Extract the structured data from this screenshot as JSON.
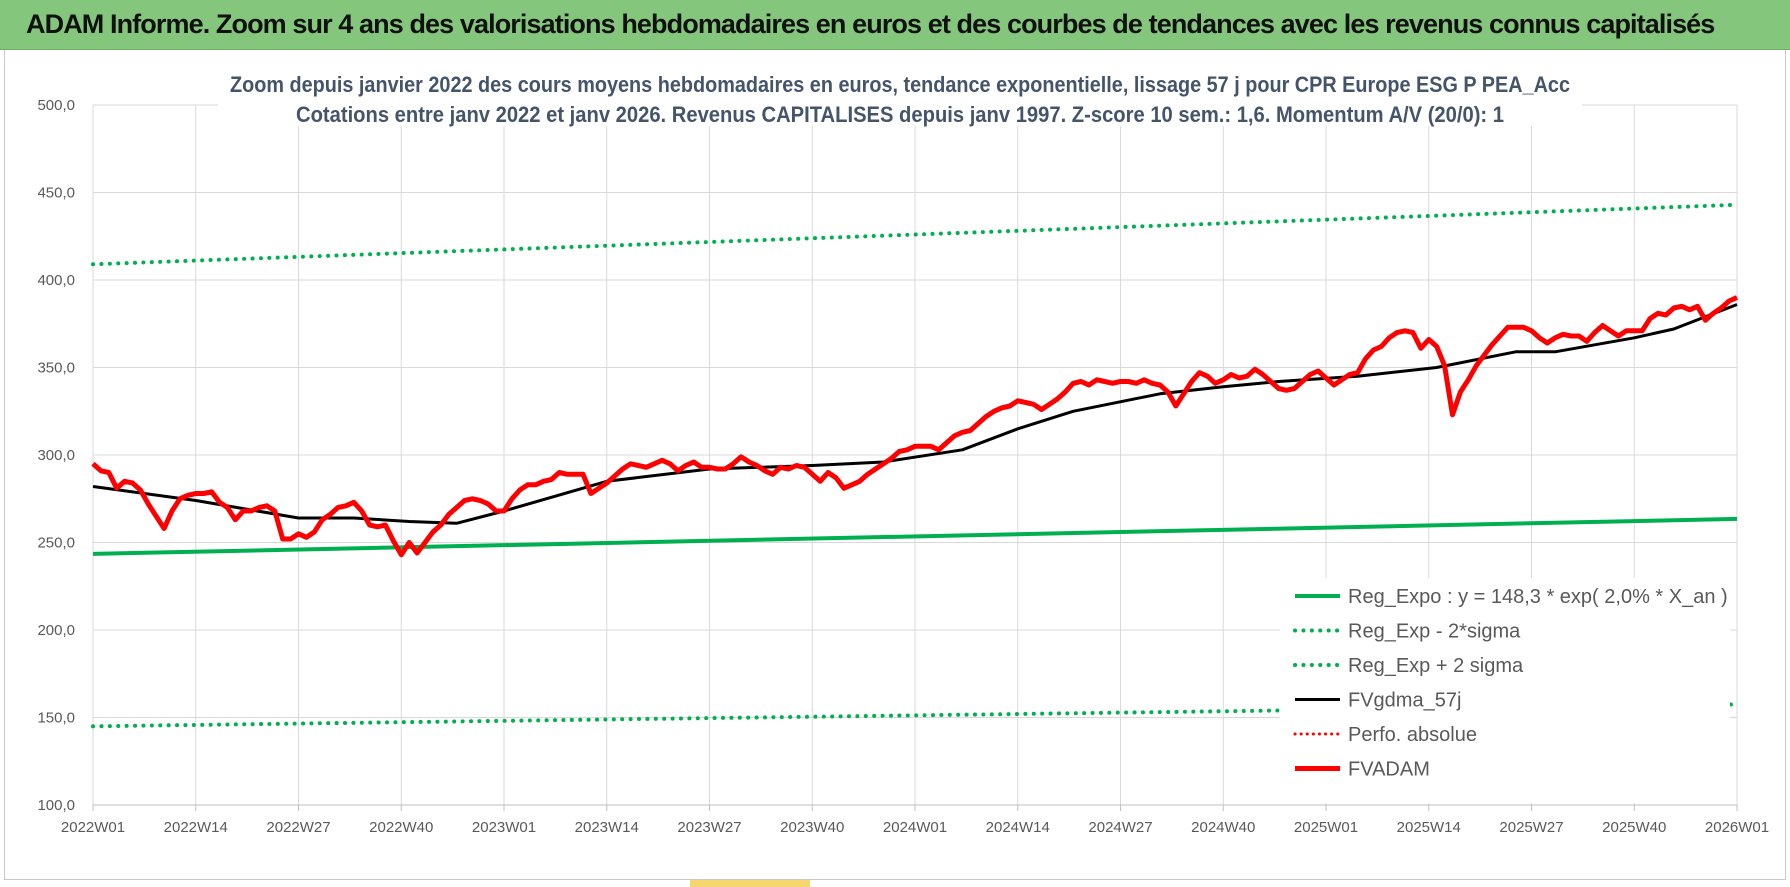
{
  "banner": {
    "title": "ADAM Informe. Zoom sur 4 ans des valorisations hebdomadaires en euros et des courbes de tendances avec les revenus connus capitalisés",
    "color": "#84c67b"
  },
  "chart_data": {
    "type": "line",
    "title_line1": "Zoom depuis janvier 2022 des cours moyens hebdomadaires en euros, tendance exponentielle, lissage 57 j pour CPR Europe ESG P PEA_Acc",
    "title_line2": "Cotations entre janv 2022 et janv 2026. Revenus CAPITALISES depuis janv 1997. Z-score 10 sem.: 1,6. Momentum A/V (20/0): 1",
    "ylim": [
      100,
      500
    ],
    "yticks": [
      "100,0",
      "150,0",
      "200,0",
      "250,0",
      "300,0",
      "350,0",
      "400,0",
      "450,0",
      "500,0"
    ],
    "xticks": [
      "2022W01",
      "2022W14",
      "2022W27",
      "2022W40",
      "2023W01",
      "2023W14",
      "2023W27",
      "2023W40",
      "2024W01",
      "2024W14",
      "2024W27",
      "2024W40",
      "2025W01",
      "2025W14",
      "2025W27",
      "2025W40",
      "2026W01"
    ],
    "xlim": [
      0,
      208
    ],
    "legend_position": "right",
    "series": [
      {
        "name": "Reg_Expo : y = 148,3 * exp( 2,0% *  X_an )",
        "color": "#00b050",
        "style": "solid",
        "points": [
          [
            0,
            243.5
          ],
          [
            208,
            263.5
          ]
        ]
      },
      {
        "name": "Reg_Exp - 2*sigma",
        "color": "#00b050",
        "style": "dotted",
        "points": [
          [
            0,
            145
          ],
          [
            208,
            157.5
          ]
        ]
      },
      {
        "name": "Reg_Exp + 2 sigma",
        "color": "#00b050",
        "style": "dotted",
        "points": [
          [
            0,
            409
          ],
          [
            208,
            443
          ]
        ]
      },
      {
        "name": "FVgdma_57j",
        "color": "#000000",
        "style": "solid",
        "points": [
          [
            0,
            282
          ],
          [
            13,
            274
          ],
          [
            26,
            264
          ],
          [
            33,
            264
          ],
          [
            40,
            262
          ],
          [
            46,
            261
          ],
          [
            52,
            268
          ],
          [
            65,
            285
          ],
          [
            78,
            292
          ],
          [
            91,
            294
          ],
          [
            100,
            296
          ],
          [
            110,
            303
          ],
          [
            117,
            315
          ],
          [
            124,
            325
          ],
          [
            135,
            335
          ],
          [
            143,
            339
          ],
          [
            150,
            342
          ],
          [
            160,
            345
          ],
          [
            170,
            350
          ],
          [
            180,
            359
          ],
          [
            185,
            359
          ],
          [
            195,
            367
          ],
          [
            200,
            372
          ],
          [
            208,
            386
          ]
        ]
      },
      {
        "name": "Perfo. absolue",
        "color": "#ff0000",
        "style": "dotted",
        "points": []
      },
      {
        "name": "FVADAM",
        "color": "#ff0000",
        "style": "solid",
        "points": [
          [
            0,
            295
          ],
          [
            1,
            291
          ],
          [
            2,
            290
          ],
          [
            3,
            281
          ],
          [
            4,
            285
          ],
          [
            5,
            284
          ],
          [
            6,
            280
          ],
          [
            7,
            272
          ],
          [
            8,
            265
          ],
          [
            9,
            258
          ],
          [
            10,
            268
          ],
          [
            11,
            275
          ],
          [
            12,
            277
          ],
          [
            13,
            278
          ],
          [
            14,
            278
          ],
          [
            15,
            279
          ],
          [
            16,
            273
          ],
          [
            17,
            270
          ],
          [
            18,
            263
          ],
          [
            19,
            268
          ],
          [
            20,
            268
          ],
          [
            21,
            270
          ],
          [
            22,
            271
          ],
          [
            23,
            268
          ],
          [
            24,
            252
          ],
          [
            25,
            252
          ],
          [
            26,
            255
          ],
          [
            27,
            253
          ],
          [
            28,
            256
          ],
          [
            29,
            263
          ],
          [
            30,
            266
          ],
          [
            31,
            270
          ],
          [
            32,
            271
          ],
          [
            33,
            273
          ],
          [
            34,
            268
          ],
          [
            35,
            260
          ],
          [
            36,
            259
          ],
          [
            37,
            260
          ],
          [
            38,
            251
          ],
          [
            39,
            243
          ],
          [
            40,
            250
          ],
          [
            41,
            244
          ],
          [
            42,
            250
          ],
          [
            43,
            256
          ],
          [
            44,
            260
          ],
          [
            45,
            266
          ],
          [
            46,
            270
          ],
          [
            47,
            274
          ],
          [
            48,
            275
          ],
          [
            49,
            274
          ],
          [
            50,
            272
          ],
          [
            51,
            268
          ],
          [
            52,
            268
          ],
          [
            53,
            275
          ],
          [
            54,
            280
          ],
          [
            55,
            283
          ],
          [
            56,
            283
          ],
          [
            57,
            285
          ],
          [
            58,
            286
          ],
          [
            59,
            290
          ],
          [
            60,
            289
          ],
          [
            61,
            289
          ],
          [
            62,
            289
          ],
          [
            63,
            278
          ],
          [
            64,
            281
          ],
          [
            65,
            284
          ],
          [
            66,
            288
          ],
          [
            67,
            292
          ],
          [
            68,
            295
          ],
          [
            69,
            294
          ],
          [
            70,
            293
          ],
          [
            71,
            295
          ],
          [
            72,
            297
          ],
          [
            73,
            295
          ],
          [
            74,
            291
          ],
          [
            75,
            294
          ],
          [
            76,
            296
          ],
          [
            77,
            293
          ],
          [
            78,
            293
          ],
          [
            79,
            292
          ],
          [
            80,
            292
          ],
          [
            81,
            295
          ],
          [
            82,
            299
          ],
          [
            83,
            296
          ],
          [
            84,
            294
          ],
          [
            85,
            291
          ],
          [
            86,
            289
          ],
          [
            87,
            293
          ],
          [
            88,
            292
          ],
          [
            89,
            294
          ],
          [
            90,
            293
          ],
          [
            91,
            289
          ],
          [
            92,
            285
          ],
          [
            93,
            290
          ],
          [
            94,
            287
          ],
          [
            95,
            281
          ],
          [
            96,
            283
          ],
          [
            97,
            285
          ],
          [
            98,
            289
          ],
          [
            99,
            292
          ],
          [
            100,
            295
          ],
          [
            101,
            298
          ],
          [
            102,
            302
          ],
          [
            103,
            303
          ],
          [
            104,
            305
          ],
          [
            105,
            305
          ],
          [
            106,
            305
          ],
          [
            107,
            303
          ],
          [
            108,
            307
          ],
          [
            109,
            311
          ],
          [
            110,
            313
          ],
          [
            111,
            314
          ],
          [
            112,
            318
          ],
          [
            113,
            322
          ],
          [
            114,
            325
          ],
          [
            115,
            327
          ],
          [
            116,
            328
          ],
          [
            117,
            331
          ],
          [
            118,
            330
          ],
          [
            119,
            329
          ],
          [
            120,
            326
          ],
          [
            121,
            329
          ],
          [
            122,
            332
          ],
          [
            123,
            336
          ],
          [
            124,
            341
          ],
          [
            125,
            342
          ],
          [
            126,
            340
          ],
          [
            127,
            343
          ],
          [
            128,
            342
          ],
          [
            129,
            341
          ],
          [
            130,
            342
          ],
          [
            131,
            342
          ],
          [
            132,
            341
          ],
          [
            133,
            343
          ],
          [
            134,
            341
          ],
          [
            135,
            340
          ],
          [
            136,
            336
          ],
          [
            137,
            328
          ],
          [
            138,
            335
          ],
          [
            139,
            342
          ],
          [
            140,
            347
          ],
          [
            141,
            345
          ],
          [
            142,
            341
          ],
          [
            143,
            343
          ],
          [
            144,
            346
          ],
          [
            145,
            344
          ],
          [
            146,
            345
          ],
          [
            147,
            349
          ],
          [
            148,
            346
          ],
          [
            149,
            342
          ],
          [
            150,
            338
          ],
          [
            151,
            337
          ],
          [
            152,
            338
          ],
          [
            153,
            342
          ],
          [
            154,
            346
          ],
          [
            155,
            348
          ],
          [
            156,
            344
          ],
          [
            157,
            340
          ],
          [
            158,
            343
          ],
          [
            159,
            346
          ],
          [
            160,
            347
          ],
          [
            161,
            355
          ],
          [
            162,
            360
          ],
          [
            163,
            362
          ],
          [
            164,
            367
          ],
          [
            165,
            370
          ],
          [
            166,
            371
          ],
          [
            167,
            370
          ],
          [
            168,
            361
          ],
          [
            169,
            366
          ],
          [
            170,
            362
          ],
          [
            171,
            351
          ],
          [
            172,
            323
          ],
          [
            173,
            336
          ],
          [
            174,
            343
          ],
          [
            175,
            351
          ],
          [
            176,
            357
          ],
          [
            177,
            363
          ],
          [
            178,
            368
          ],
          [
            179,
            373
          ],
          [
            180,
            373
          ],
          [
            181,
            373
          ],
          [
            182,
            371
          ],
          [
            183,
            367
          ],
          [
            184,
            364
          ],
          [
            185,
            367
          ],
          [
            186,
            369
          ],
          [
            187,
            368
          ],
          [
            188,
            368
          ],
          [
            189,
            365
          ],
          [
            190,
            370
          ],
          [
            191,
            374
          ],
          [
            192,
            371
          ],
          [
            193,
            368
          ],
          [
            194,
            371
          ],
          [
            195,
            371
          ],
          [
            196,
            371
          ],
          [
            197,
            378
          ],
          [
            198,
            381
          ],
          [
            199,
            380
          ],
          [
            200,
            384
          ],
          [
            201,
            385
          ],
          [
            202,
            383
          ],
          [
            203,
            385
          ],
          [
            204,
            377
          ],
          [
            205,
            381
          ],
          [
            206,
            384
          ],
          [
            207,
            388
          ],
          [
            208,
            390
          ]
        ]
      }
    ]
  }
}
